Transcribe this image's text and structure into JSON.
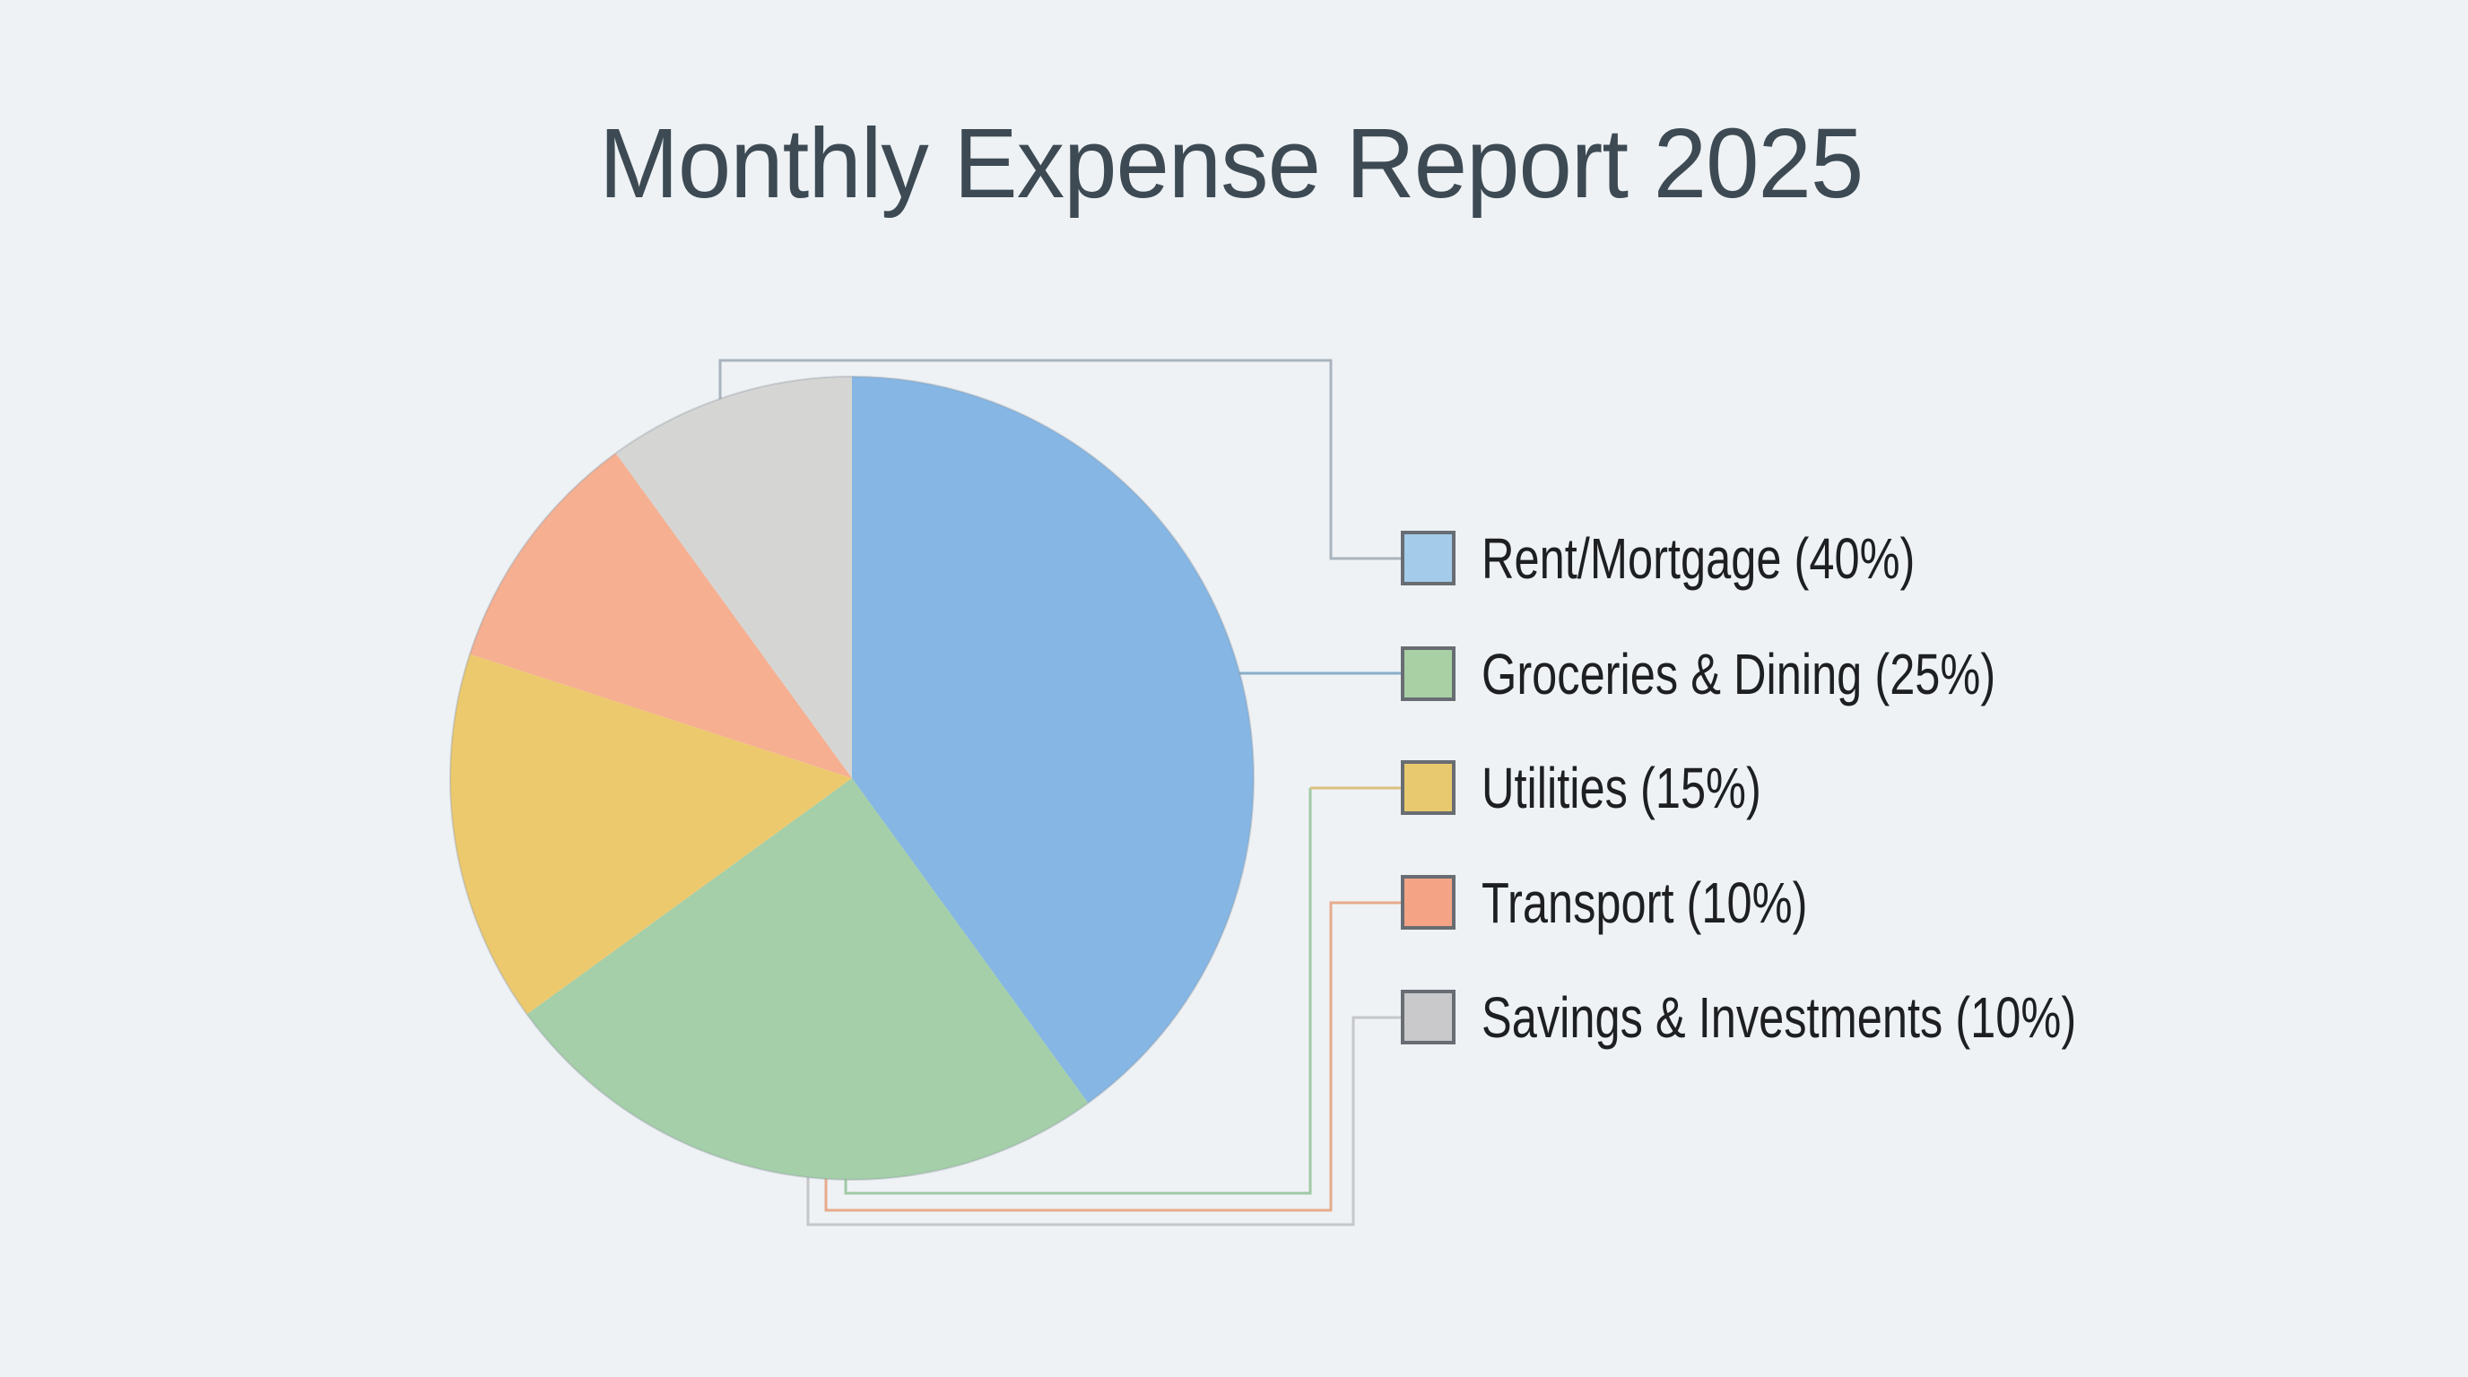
{
  "title": "Monthly Expense Report 2025",
  "chart_data": {
    "type": "pie",
    "title": "Monthly Expense Report 2025",
    "categories": [
      "Rent/Mortgage",
      "Groceries & Dining",
      "Utilities",
      "Transport",
      "Savings & Investments"
    ],
    "values": [
      40,
      25,
      15,
      10,
      10
    ],
    "unit": "percent",
    "start_angle_deg": 0,
    "direction": "clockwise",
    "legend_position": "right",
    "slice_colors": [
      "#85b6e4",
      "#a4cfa9",
      "#edc96e",
      "#f6af91",
      "#d5d5d3"
    ]
  },
  "legend": {
    "items": [
      {
        "label": "Rent/Mortgage (40%)",
        "swatch_color": "#a4cbe9",
        "leader_color": "#aab4bd"
      },
      {
        "label": "Groceries & Dining (25%)",
        "swatch_color": "#a8d0a4",
        "leader_color": "#8aaec9"
      },
      {
        "label": "Utilities (15%)",
        "swatch_color": "#e8c96f",
        "leader_color": "#d9c27e"
      },
      {
        "label": "Transport (10%)",
        "swatch_color": "#f4a485",
        "leader_color": "#e7ab8c"
      },
      {
        "label": "Savings & Investments (10%)",
        "swatch_color": "#c9c9cb",
        "leader_color": "#c5c7c9"
      }
    ],
    "swatch_border_color": "#686d73"
  },
  "colors": {
    "background": "#eef2f5",
    "title_text": "#3d4a53",
    "legend_text": "#1e1f21",
    "utilities_leader_stem": "#a0c9a5",
    "pie_rim": "rgba(140,150,158,0.35)"
  }
}
